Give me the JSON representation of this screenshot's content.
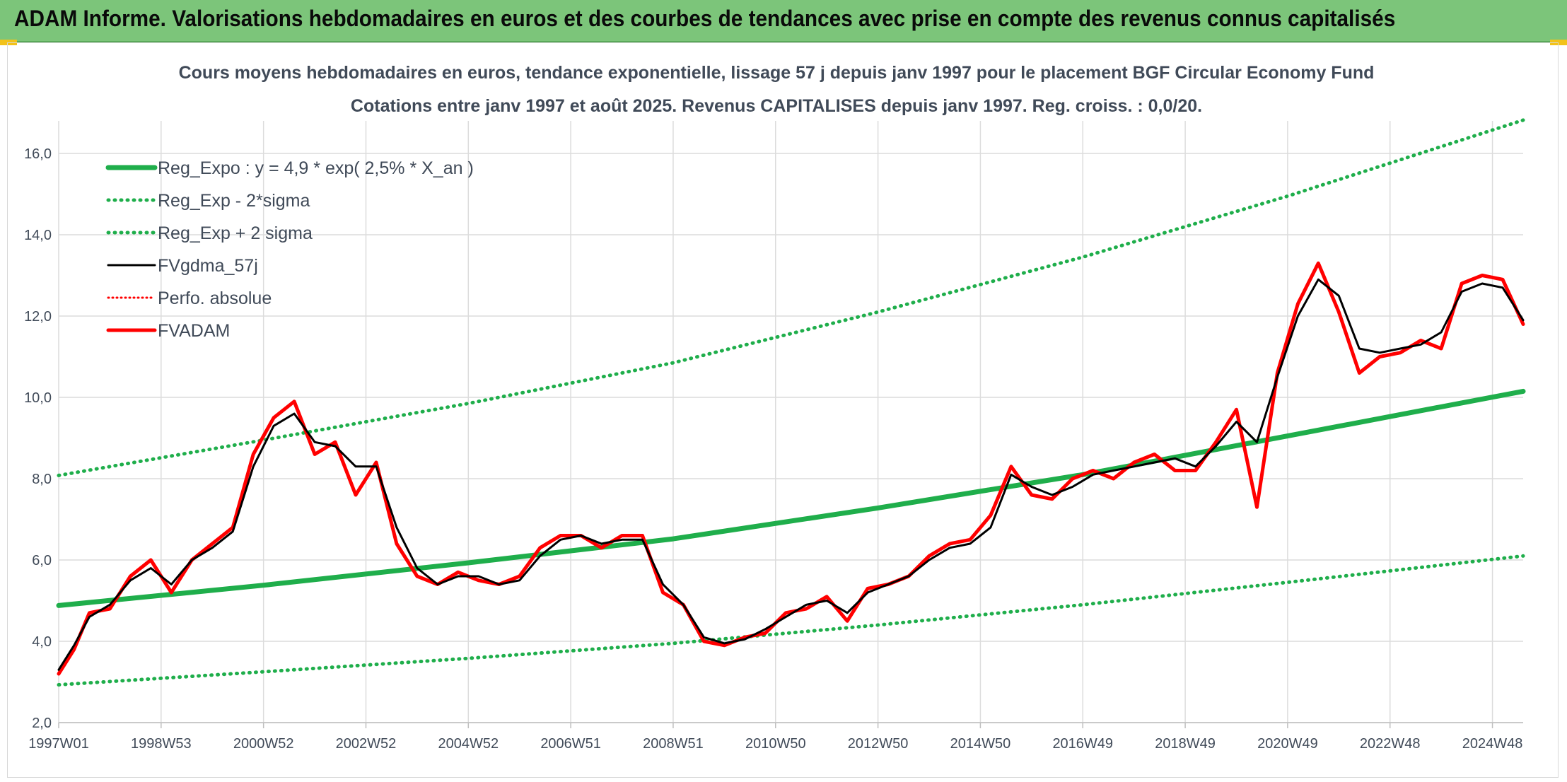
{
  "header": {
    "banner": "ADAM Informe. Valorisations hebdomadaires en euros et des courbes de tendances avec prise en compte des revenus connus capitalisés"
  },
  "chart_data": {
    "type": "line",
    "title": "Cours moyens hebdomadaires en euros, tendance exponentielle, lissage 57 j depuis janv 1997 pour le placement BGF Circular Economy Fund",
    "subtitle": "Cotations entre janv 1997 et août 2025. Revenus CAPITALISES depuis janv 1997. Reg. croiss. : 0,0/20.",
    "xlabel": "",
    "ylabel": "",
    "x_range": [
      1997.0,
      2025.6
    ],
    "ylim": [
      2.0,
      16.8
    ],
    "y_ticks": [
      "2,0",
      "4,0",
      "6,0",
      "8,0",
      "10,0",
      "12,0",
      "14,0",
      "16,0"
    ],
    "x_ticks": [
      {
        "label": "1997W01",
        "x": 1997.0
      },
      {
        "label": "1998W53",
        "x": 1999.0
      },
      {
        "label": "2000W52",
        "x": 2001.0
      },
      {
        "label": "2002W52",
        "x": 2003.0
      },
      {
        "label": "2004W52",
        "x": 2005.0
      },
      {
        "label": "2006W51",
        "x": 2007.0
      },
      {
        "label": "2008W51",
        "x": 2009.0
      },
      {
        "label": "2010W50",
        "x": 2011.0
      },
      {
        "label": "2012W50",
        "x": 2013.0
      },
      {
        "label": "2014W50",
        "x": 2015.0
      },
      {
        "label": "2016W49",
        "x": 2017.0
      },
      {
        "label": "2018W49",
        "x": 2019.0
      },
      {
        "label": "2020W49",
        "x": 2021.0
      },
      {
        "label": "2022W48",
        "x": 2023.0
      },
      {
        "label": "2024W48",
        "x": 2025.0
      }
    ],
    "grid": "vertical and horizontal",
    "legend_position": "top-left",
    "colors": {
      "green": "#1fae4b",
      "black": "#000000",
      "red": "#ff0000"
    },
    "series": [
      {
        "name": "Reg_Expo : y = 4,9 * exp( 2,5% *  X_an )",
        "kind": "solid",
        "color": "#1fae4b",
        "x": [
          1997.0,
          2001.0,
          2005.0,
          2009.0,
          2013.0,
          2017.0,
          2021.0,
          2025.6
        ],
        "y": [
          4.88,
          5.38,
          5.93,
          6.52,
          7.28,
          8.1,
          9.05,
          10.15
        ]
      },
      {
        "name": "Reg_Exp - 2*sigma",
        "kind": "dotted",
        "color": "#1fae4b",
        "x": [
          1997.0,
          2001.0,
          2005.0,
          2009.0,
          2013.0,
          2017.0,
          2021.0,
          2025.6
        ],
        "y": [
          2.93,
          3.25,
          3.58,
          3.95,
          4.4,
          4.9,
          5.45,
          6.1
        ]
      },
      {
        "name": "Reg_Exp + 2 sigma",
        "kind": "dotted",
        "color": "#1fae4b",
        "x": [
          1997.0,
          2001.0,
          2005.0,
          2009.0,
          2013.0,
          2017.0,
          2021.0,
          2025.6
        ],
        "y": [
          8.08,
          8.95,
          9.85,
          10.85,
          12.1,
          13.45,
          14.95,
          16.82
        ]
      },
      {
        "name": "FVgdma_57j",
        "kind": "solid-thin",
        "color": "#000000",
        "x": [
          1997.0,
          1997.3,
          1997.6,
          1998.0,
          1998.4,
          1998.8,
          1999.2,
          1999.6,
          2000.0,
          2000.4,
          2000.8,
          2001.2,
          2001.6,
          2002.0,
          2002.4,
          2002.8,
          2003.2,
          2003.6,
          2004.0,
          2004.4,
          2004.8,
          2005.2,
          2005.6,
          2006.0,
          2006.4,
          2006.8,
          2007.2,
          2007.6,
          2008.0,
          2008.4,
          2008.8,
          2009.2,
          2009.6,
          2010.0,
          2010.4,
          2010.8,
          2011.2,
          2011.6,
          2012.0,
          2012.4,
          2012.8,
          2013.2,
          2013.6,
          2014.0,
          2014.4,
          2014.8,
          2015.2,
          2015.6,
          2016.0,
          2016.4,
          2016.8,
          2017.2,
          2017.6,
          2018.0,
          2018.4,
          2018.8,
          2019.2,
          2019.6,
          2020.0,
          2020.4,
          2020.8,
          2021.2,
          2021.6,
          2022.0,
          2022.4,
          2022.8,
          2023.2,
          2023.6,
          2024.0,
          2024.4,
          2024.8,
          2025.2,
          2025.6
        ],
        "y": [
          3.3,
          3.9,
          4.6,
          4.9,
          5.5,
          5.8,
          5.4,
          6.0,
          6.3,
          6.7,
          8.3,
          9.3,
          9.6,
          8.9,
          8.8,
          8.3,
          8.3,
          6.8,
          5.8,
          5.4,
          5.6,
          5.6,
          5.4,
          5.5,
          6.1,
          6.5,
          6.6,
          6.4,
          6.5,
          6.5,
          5.4,
          4.9,
          4.1,
          3.95,
          4.05,
          4.3,
          4.6,
          4.9,
          5.0,
          4.7,
          5.2,
          5.4,
          5.6,
          6.0,
          6.3,
          6.4,
          6.8,
          8.1,
          7.8,
          7.6,
          7.8,
          8.1,
          8.2,
          8.3,
          8.4,
          8.5,
          8.3,
          8.8,
          9.4,
          8.9,
          10.5,
          12.0,
          12.9,
          12.5,
          11.2,
          11.1,
          11.2,
          11.3,
          11.6,
          12.6,
          12.8,
          12.7,
          11.9
        ]
      },
      {
        "name": "Perfo. absolue",
        "kind": "dotted",
        "color": "#ff0000",
        "x": [
          1997.0,
          1997.3,
          1997.6,
          1998.0,
          1998.4,
          1998.8,
          1999.2,
          1999.6,
          2000.0,
          2000.4,
          2000.8,
          2001.2,
          2001.6,
          2002.0,
          2002.4,
          2002.8,
          2003.2,
          2003.6,
          2004.0,
          2004.4,
          2004.8,
          2005.2,
          2005.6,
          2006.0,
          2006.4,
          2006.8,
          2007.2,
          2007.6,
          2008.0,
          2008.4,
          2008.8,
          2009.2,
          2009.6,
          2010.0,
          2010.4,
          2010.8,
          2011.2,
          2011.6,
          2012.0,
          2012.4,
          2012.8,
          2013.2,
          2013.6,
          2014.0,
          2014.4,
          2014.8,
          2015.2,
          2015.6,
          2016.0,
          2016.4,
          2016.8,
          2017.2,
          2017.6,
          2018.0,
          2018.4,
          2018.8,
          2019.2,
          2019.6,
          2020.0,
          2020.4,
          2020.8,
          2021.2,
          2021.6,
          2022.0,
          2022.4,
          2022.8,
          2023.2,
          2023.6,
          2024.0,
          2024.4,
          2024.8,
          2025.2,
          2025.6
        ],
        "y": [
          3.2,
          3.8,
          4.7,
          4.8,
          5.6,
          6.0,
          5.2,
          6.0,
          6.4,
          6.8,
          8.6,
          9.5,
          9.9,
          8.6,
          8.9,
          7.6,
          8.4,
          6.4,
          5.6,
          5.4,
          5.7,
          5.5,
          5.4,
          5.6,
          6.3,
          6.6,
          6.6,
          6.3,
          6.6,
          6.6,
          5.2,
          4.9,
          4.0,
          3.9,
          4.1,
          4.2,
          4.7,
          4.8,
          5.1,
          4.5,
          5.3,
          5.4,
          5.6,
          6.1,
          6.4,
          6.5,
          7.1,
          8.3,
          7.6,
          7.5,
          8.0,
          8.2,
          8.0,
          8.4,
          8.6,
          8.2,
          8.2,
          8.9,
          9.7,
          7.3,
          10.6,
          12.3,
          13.3,
          12.1,
          10.6,
          11.0,
          11.1,
          11.4,
          11.2,
          12.8,
          13.0,
          12.9,
          11.8
        ]
      },
      {
        "name": "FVADAM",
        "kind": "solid",
        "color": "#ff0000",
        "x": [
          1997.0,
          1997.3,
          1997.6,
          1998.0,
          1998.4,
          1998.8,
          1999.2,
          1999.6,
          2000.0,
          2000.4,
          2000.8,
          2001.2,
          2001.6,
          2002.0,
          2002.4,
          2002.8,
          2003.2,
          2003.6,
          2004.0,
          2004.4,
          2004.8,
          2005.2,
          2005.6,
          2006.0,
          2006.4,
          2006.8,
          2007.2,
          2007.6,
          2008.0,
          2008.4,
          2008.8,
          2009.2,
          2009.6,
          2010.0,
          2010.4,
          2010.8,
          2011.2,
          2011.6,
          2012.0,
          2012.4,
          2012.8,
          2013.2,
          2013.6,
          2014.0,
          2014.4,
          2014.8,
          2015.2,
          2015.6,
          2016.0,
          2016.4,
          2016.8,
          2017.2,
          2017.6,
          2018.0,
          2018.4,
          2018.8,
          2019.2,
          2019.6,
          2020.0,
          2020.4,
          2020.8,
          2021.2,
          2021.6,
          2022.0,
          2022.4,
          2022.8,
          2023.2,
          2023.6,
          2024.0,
          2024.4,
          2024.8,
          2025.2,
          2025.6
        ],
        "y": [
          3.2,
          3.8,
          4.7,
          4.8,
          5.6,
          6.0,
          5.2,
          6.0,
          6.4,
          6.8,
          8.6,
          9.5,
          9.9,
          8.6,
          8.9,
          7.6,
          8.4,
          6.4,
          5.6,
          5.4,
          5.7,
          5.5,
          5.4,
          5.6,
          6.3,
          6.6,
          6.6,
          6.3,
          6.6,
          6.6,
          5.2,
          4.9,
          4.0,
          3.9,
          4.1,
          4.2,
          4.7,
          4.8,
          5.1,
          4.5,
          5.3,
          5.4,
          5.6,
          6.1,
          6.4,
          6.5,
          7.1,
          8.3,
          7.6,
          7.5,
          8.0,
          8.2,
          8.0,
          8.4,
          8.6,
          8.2,
          8.2,
          8.9,
          9.7,
          7.3,
          10.6,
          12.3,
          13.3,
          12.1,
          10.6,
          11.0,
          11.1,
          11.4,
          11.2,
          12.8,
          13.0,
          12.9,
          11.8
        ]
      }
    ]
  }
}
